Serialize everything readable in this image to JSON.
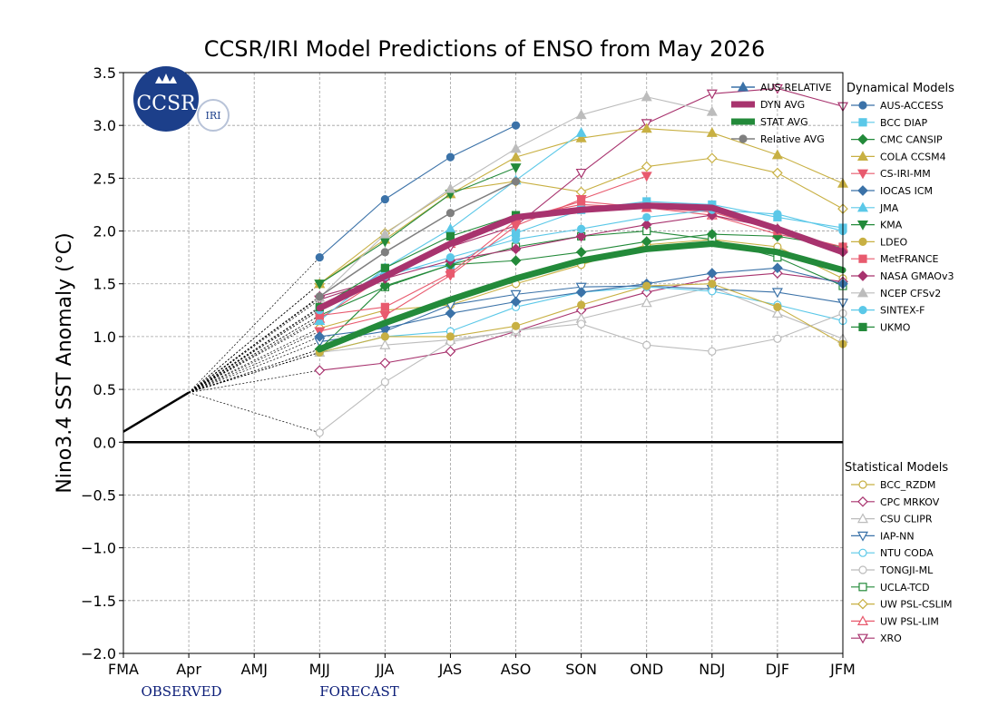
{
  "colors": {
    "dyn_avg": "#a8336e",
    "stat_avg": "#238a3a",
    "relative_avg": "#7f7f7f",
    "aus_relative": "#3b72a8",
    "logo_blue": "#1c3f8a"
  },
  "logo": {
    "main": "CCSR",
    "secondary": "IRI"
  },
  "chart_data": {
    "type": "line",
    "title": "CCSR/IRI Model Predictions of ENSO from May 2026",
    "xlabel": "",
    "ylabel": "Nino3.4 SST Anomaly (°C)",
    "categories": [
      "FMA",
      "Apr",
      "AMJ",
      "MJJ",
      "JJA",
      "JAS",
      "ASO",
      "SON",
      "OND",
      "NDJ",
      "DJF",
      "JFM"
    ],
    "ylim": [
      -2.0,
      3.5
    ],
    "yticks": [
      "3.5",
      "3.0",
      "2.5",
      "2.0",
      "1.5",
      "1.0",
      "0.5",
      "0.0",
      "−0.5",
      "−1.0",
      "−1.5",
      "−2.0"
    ],
    "grid": true,
    "phase_labels": {
      "observed": "OBSERVED",
      "forecast": "FORECAST"
    },
    "observed": {
      "x": [
        "FMA",
        "Apr"
      ],
      "values": [
        0.1,
        0.47
      ]
    },
    "legend_avg": [
      {
        "name": "AUS-RELATIVE",
        "color": "#3b72a8",
        "marker": "triangle-up"
      },
      {
        "name": "DYN AVG",
        "color": "#a8336e",
        "marker": "none"
      },
      {
        "name": "STAT AVG",
        "color": "#238a3a",
        "marker": "none"
      },
      {
        "name": "Relative AVG",
        "color": "#7f7f7f",
        "marker": "circle"
      }
    ],
    "legend_dynamical_title": "Dynamical Models",
    "legend_statistical_title": "Statistical Models",
    "averages": [
      {
        "name": "AUS-RELATIVE",
        "color": "#3b72a8",
        "marker": "triangle-up",
        "values": [
          null,
          null,
          null,
          null,
          null,
          null,
          null,
          null,
          null,
          null,
          null,
          null
        ]
      },
      {
        "name": "Relative AVG",
        "color": "#7f7f7f",
        "marker": "circle",
        "values": [
          null,
          null,
          null,
          1.38,
          1.8,
          2.17,
          2.47,
          null,
          null,
          null,
          null,
          null
        ]
      },
      {
        "name": "DYN AVG",
        "color": "#a8336e",
        "marker": "none",
        "width": 7,
        "values": [
          null,
          null,
          null,
          1.27,
          1.57,
          1.88,
          2.13,
          2.2,
          2.24,
          2.22,
          2.02,
          1.8
        ]
      },
      {
        "name": "STAT AVG",
        "color": "#238a3a",
        "marker": "none",
        "width": 7,
        "values": [
          null,
          null,
          null,
          0.88,
          1.13,
          1.35,
          1.55,
          1.72,
          1.83,
          1.88,
          1.8,
          1.63
        ]
      }
    ],
    "dynamical": [
      {
        "name": "AUS-ACCESS",
        "color": "#3b72a8",
        "marker": "circle",
        "values": [
          null,
          null,
          null,
          1.75,
          2.3,
          2.7,
          3.0,
          null,
          null,
          null,
          null,
          null
        ]
      },
      {
        "name": "BCC DIAP",
        "color": "#5bc8e8",
        "marker": "square",
        "values": [
          null,
          null,
          null,
          1.25,
          1.62,
          1.68,
          1.98,
          2.2,
          2.28,
          2.25,
          2.13,
          2.03
        ]
      },
      {
        "name": "CMC CANSIP",
        "color": "#238a3a",
        "marker": "diamond",
        "values": [
          null,
          null,
          null,
          0.88,
          1.48,
          1.68,
          1.72,
          1.8,
          1.9,
          1.97,
          1.95,
          1.85
        ]
      },
      {
        "name": "COLA CCSM4",
        "color": "#c8b043",
        "marker": "triangle-up",
        "values": [
          null,
          null,
          null,
          1.5,
          1.92,
          2.35,
          2.7,
          2.88,
          2.97,
          2.93,
          2.72,
          2.45
        ]
      },
      {
        "name": "CS-IRI-MM",
        "color": "#e85a6e",
        "marker": "triangle-down",
        "values": [
          null,
          null,
          null,
          1.05,
          1.2,
          1.58,
          2.05,
          2.3,
          2.52,
          null,
          null,
          null
        ]
      },
      {
        "name": "IOCAS ICM",
        "color": "#3b72a8",
        "marker": "diamond",
        "values": [
          null,
          null,
          null,
          1.0,
          1.08,
          1.22,
          1.33,
          1.42,
          1.5,
          1.6,
          1.65,
          1.5
        ]
      },
      {
        "name": "JMA",
        "color": "#5bc8e8",
        "marker": "triangle-up",
        "values": [
          null,
          null,
          null,
          1.15,
          1.65,
          2.02,
          2.48,
          2.93,
          null,
          null,
          null,
          null
        ]
      },
      {
        "name": "KMA",
        "color": "#238a3a",
        "marker": "triangle-down",
        "values": [
          null,
          null,
          null,
          1.5,
          1.9,
          2.35,
          2.6,
          null,
          null,
          null,
          null,
          null
        ]
      },
      {
        "name": "LDEO",
        "color": "#c8b043",
        "marker": "circle",
        "values": [
          null,
          null,
          null,
          0.85,
          1.0,
          1.0,
          1.1,
          1.3,
          1.48,
          1.5,
          1.28,
          0.93
        ]
      },
      {
        "name": "MetFRANCE",
        "color": "#e85a6e",
        "marker": "square",
        "values": [
          null,
          null,
          null,
          1.2,
          1.28,
          1.6,
          2.1,
          2.28,
          2.22,
          2.18,
          2.0,
          1.85
        ]
      },
      {
        "name": "NASA GMAOv3",
        "color": "#a8336e",
        "marker": "diamond",
        "values": [
          null,
          null,
          null,
          1.38,
          1.55,
          1.72,
          1.83,
          1.95,
          2.06,
          2.15,
          2.02,
          1.8
        ]
      },
      {
        "name": "NCEP CFSv2",
        "color": "#bcbcbc",
        "marker": "triangle-up",
        "values": [
          null,
          null,
          null,
          1.37,
          1.97,
          2.4,
          2.78,
          3.1,
          3.27,
          3.13,
          null,
          null
        ]
      },
      {
        "name": "SINTEX-F",
        "color": "#5bc8e8",
        "marker": "circle",
        "values": [
          null,
          null,
          null,
          1.25,
          1.57,
          1.75,
          1.92,
          2.02,
          2.13,
          2.2,
          2.16,
          2.0
        ]
      },
      {
        "name": "UKMO",
        "color": "#238a3a",
        "marker": "square",
        "values": [
          null,
          null,
          null,
          1.28,
          1.65,
          1.95,
          2.15,
          null,
          null,
          null,
          null,
          null
        ]
      }
    ],
    "statistical": [
      {
        "name": "BCC_RZDM",
        "color": "#c8b043",
        "marker": "circle-open",
        "values": [
          null,
          null,
          null,
          1.08,
          1.25,
          1.3,
          1.5,
          1.68,
          1.87,
          1.92,
          1.85,
          1.55
        ]
      },
      {
        "name": "CPC MRKOV",
        "color": "#a8336e",
        "marker": "diamond-open",
        "values": [
          null,
          null,
          null,
          0.68,
          0.75,
          0.86,
          1.05,
          1.25,
          1.42,
          1.55,
          1.6,
          1.52
        ]
      },
      {
        "name": "CSU CLIPR",
        "color": "#bcbcbc",
        "marker": "triangle-up-open",
        "values": [
          null,
          null,
          null,
          0.85,
          0.92,
          0.97,
          1.05,
          1.17,
          1.32,
          1.47,
          1.22,
          0.98
        ]
      },
      {
        "name": "IAP-NN",
        "color": "#3b72a8",
        "marker": "triangle-down-open",
        "values": [
          null,
          null,
          null,
          0.95,
          1.05,
          1.3,
          1.4,
          1.47,
          1.48,
          1.45,
          1.42,
          1.32
        ]
      },
      {
        "name": "NTU CODA",
        "color": "#5bc8e8",
        "marker": "circle-open",
        "values": [
          null,
          null,
          null,
          0.85,
          1.0,
          1.05,
          1.28,
          1.42,
          1.47,
          1.43,
          1.3,
          1.15
        ]
      },
      {
        "name": "TONGJI-ML",
        "color": "#bcbcbc",
        "marker": "circle-open",
        "values": [
          null,
          null,
          null,
          0.09,
          0.57,
          0.95,
          1.06,
          1.12,
          0.92,
          0.86,
          0.98,
          1.22
        ]
      },
      {
        "name": "UCLA-TCD",
        "color": "#238a3a",
        "marker": "square-open",
        "values": [
          null,
          null,
          null,
          1.2,
          1.47,
          1.68,
          1.85,
          1.95,
          2.0,
          1.92,
          1.75,
          1.48
        ]
      },
      {
        "name": "UW PSL-CSLIM",
        "color": "#c8b043",
        "marker": "diamond-open",
        "values": [
          null,
          null,
          null,
          1.5,
          1.98,
          2.38,
          2.47,
          2.37,
          2.61,
          2.69,
          2.55,
          2.21
        ]
      },
      {
        "name": "UW PSL-LIM",
        "color": "#e85a6e",
        "marker": "triangle-up-open",
        "values": [
          null,
          null,
          null,
          1.17,
          1.57,
          1.88,
          2.13,
          2.25,
          2.22,
          2.15,
          1.97,
          1.85
        ]
      },
      {
        "name": "XRO",
        "color": "#a8336e",
        "marker": "triangle-down-open",
        "values": [
          null,
          null,
          null,
          1.35,
          1.55,
          1.85,
          2.05,
          2.55,
          3.02,
          3.3,
          3.35,
          3.18
        ]
      }
    ]
  }
}
